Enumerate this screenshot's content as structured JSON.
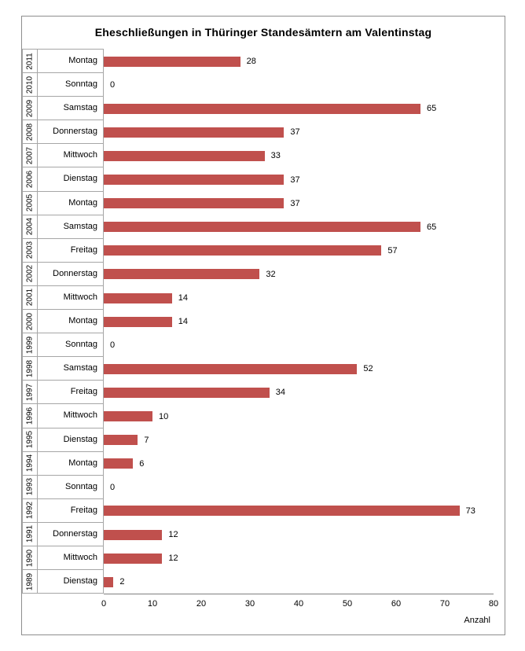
{
  "chart_data": {
    "type": "bar",
    "orientation": "horizontal",
    "title": "Eheschließungen in Thüringer Standesämtern am Valentinstag",
    "xlabel": "Anzahl",
    "xlim": [
      0,
      80
    ],
    "x_ticks": [
      0,
      10,
      20,
      30,
      40,
      50,
      60,
      70,
      80
    ],
    "grid_lines": false,
    "legend": false,
    "value_labels_shown": true,
    "rows": [
      {
        "year": "2011",
        "day": "Montag",
        "value": 28
      },
      {
        "year": "2010",
        "day": "Sonntag",
        "value": 0
      },
      {
        "year": "2009",
        "day": "Samstag",
        "value": 65
      },
      {
        "year": "2008",
        "day": "Donnerstag",
        "value": 37
      },
      {
        "year": "2007",
        "day": "Mittwoch",
        "value": 33
      },
      {
        "year": "2006",
        "day": "Dienstag",
        "value": 37
      },
      {
        "year": "2005",
        "day": "Montag",
        "value": 37
      },
      {
        "year": "2004",
        "day": "Samstag",
        "value": 65
      },
      {
        "year": "2003",
        "day": "Freitag",
        "value": 57
      },
      {
        "year": "2002",
        "day": "Donnerstag",
        "value": 32
      },
      {
        "year": "2001",
        "day": "Mittwoch",
        "value": 14
      },
      {
        "year": "2000",
        "day": "Montag",
        "value": 14
      },
      {
        "year": "1999",
        "day": "Sonntag",
        "value": 0
      },
      {
        "year": "1998",
        "day": "Samstag",
        "value": 52
      },
      {
        "year": "1997",
        "day": "Freitag",
        "value": 34
      },
      {
        "year": "1996",
        "day": "Mittwoch",
        "value": 10
      },
      {
        "year": "1995",
        "day": "Dienstag",
        "value": 7
      },
      {
        "year": "1994",
        "day": "Montag",
        "value": 6
      },
      {
        "year": "1993",
        "day": "Sonntag",
        "value": 0
      },
      {
        "year": "1992",
        "day": "Freitag",
        "value": 73
      },
      {
        "year": "1991",
        "day": "Donnerstag",
        "value": 12
      },
      {
        "year": "1990",
        "day": "Mittwoch",
        "value": 12
      },
      {
        "year": "1989",
        "day": "Dienstag",
        "value": 2
      }
    ]
  },
  "colors": {
    "bar": "#C0504D",
    "cell_border": "#A6A6A6",
    "frame_border": "#8E8E8E",
    "axis_line": "#7F7F7F",
    "text": "#000000",
    "background": "#FFFFFF"
  }
}
